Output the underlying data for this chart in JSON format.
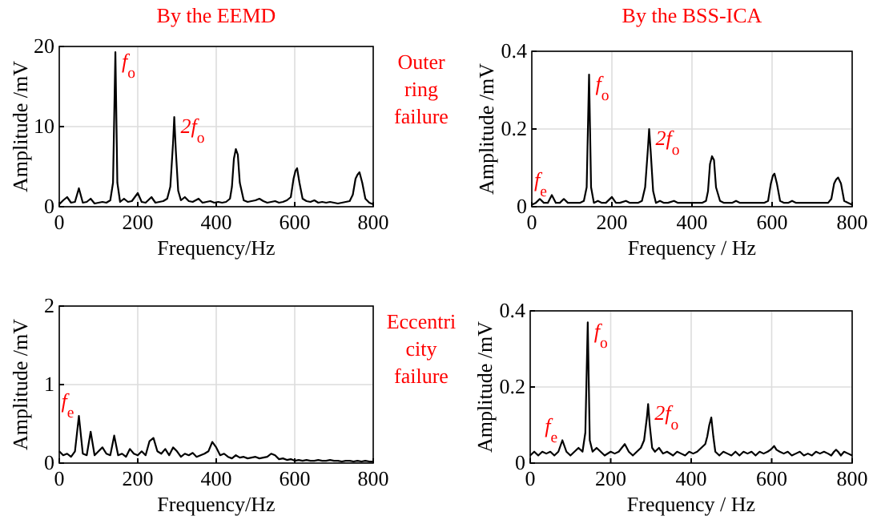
{
  "chart_data": [
    {
      "type": "line",
      "title": "By the EEMD",
      "xlabel": "Frequency/Hz",
      "ylabel": "Amplitude /mV",
      "xlim": [
        0,
        800
      ],
      "xticks": [
        0,
        200,
        400,
        600,
        800
      ],
      "ylim": [
        0,
        20
      ],
      "yticks": [
        0,
        10,
        20
      ],
      "grid": true,
      "x": [
        0,
        10,
        20,
        30,
        40,
        50,
        60,
        70,
        80,
        90,
        100,
        110,
        120,
        130,
        137,
        143,
        148,
        155,
        165,
        175,
        185,
        200,
        210,
        220,
        235,
        245,
        255,
        265,
        275,
        283,
        290,
        293,
        297,
        303,
        310,
        320,
        330,
        340,
        355,
        365,
        375,
        385,
        395,
        405,
        415,
        425,
        435,
        440,
        445,
        450,
        455,
        460,
        470,
        480,
        490,
        500,
        510,
        520,
        530,
        540,
        550,
        560,
        570,
        580,
        590,
        597,
        602,
        606,
        612,
        620,
        630,
        640,
        650,
        660,
        670,
        680,
        690,
        700,
        710,
        720,
        730,
        740,
        748,
        755,
        760,
        765,
        772,
        780,
        790,
        800
      ],
      "series": [
        {
          "color": "#000000",
          "values": [
            0.3,
            0.8,
            1.2,
            0.5,
            0.6,
            2.3,
            0.5,
            0.6,
            1.0,
            0.4,
            0.5,
            0.6,
            0.5,
            0.8,
            3,
            19.3,
            3,
            0.6,
            1.0,
            0.6,
            0.7,
            1.7,
            0.6,
            0.5,
            1.2,
            0.5,
            0.6,
            0.7,
            1.0,
            2.5,
            8,
            11.2,
            7,
            2,
            0.8,
            1.2,
            0.7,
            0.6,
            1.0,
            0.5,
            0.6,
            0.7,
            0.5,
            0.6,
            0.5,
            0.6,
            1.0,
            2.5,
            6,
            7.2,
            6.5,
            3,
            0.8,
            0.6,
            0.7,
            0.8,
            1.0,
            0.7,
            0.5,
            0.6,
            0.7,
            0.5,
            0.6,
            0.8,
            1.2,
            3.5,
            4.5,
            4.8,
            3.0,
            1.0,
            0.7,
            0.6,
            0.8,
            0.5,
            0.6,
            0.5,
            0.6,
            0.5,
            0.4,
            0.5,
            0.6,
            0.7,
            1.5,
            3.5,
            4.0,
            4.3,
            3.0,
            1.0,
            0.5,
            0.3
          ]
        }
      ],
      "annotations": [
        {
          "text": "f$_{o}$",
          "x": 143,
          "y": 19.3
        },
        {
          "text": "2f$_{o}$",
          "x": 293,
          "y": 11.2
        },
        "Outer\nring\nfailure"
      ]
    },
    {
      "type": "line",
      "title": "By the BSS-ICA",
      "xlabel": "Frequency / Hz",
      "ylabel": "Amplitude /mV",
      "xlim": [
        0,
        800
      ],
      "xticks": [
        0,
        200,
        400,
        600,
        800
      ],
      "ylim": [
        0,
        0.4
      ],
      "yticks": [
        0,
        0.2,
        0.4
      ],
      "grid": true,
      "x": [
        0,
        10,
        20,
        30,
        40,
        50,
        60,
        70,
        80,
        90,
        100,
        110,
        120,
        130,
        137,
        143,
        148,
        155,
        165,
        175,
        185,
        200,
        210,
        220,
        235,
        245,
        255,
        265,
        275,
        283,
        290,
        293,
        297,
        303,
        310,
        320,
        330,
        340,
        355,
        365,
        375,
        385,
        395,
        405,
        415,
        425,
        435,
        440,
        445,
        450,
        455,
        460,
        470,
        480,
        490,
        500,
        510,
        520,
        530,
        540,
        550,
        560,
        570,
        580,
        590,
        597,
        602,
        606,
        612,
        620,
        630,
        640,
        650,
        660,
        670,
        680,
        690,
        700,
        710,
        720,
        730,
        740,
        748,
        755,
        760,
        765,
        772,
        780,
        790,
        800
      ],
      "series": [
        {
          "color": "#000000",
          "values": [
            0.005,
            0.01,
            0.02,
            0.01,
            0.01,
            0.03,
            0.01,
            0.01,
            0.02,
            0.01,
            0.01,
            0.01,
            0.01,
            0.015,
            0.05,
            0.34,
            0.05,
            0.01,
            0.015,
            0.01,
            0.01,
            0.025,
            0.01,
            0.01,
            0.015,
            0.01,
            0.01,
            0.01,
            0.015,
            0.05,
            0.15,
            0.2,
            0.14,
            0.04,
            0.01,
            0.015,
            0.01,
            0.01,
            0.015,
            0.01,
            0.01,
            0.01,
            0.01,
            0.01,
            0.01,
            0.01,
            0.015,
            0.04,
            0.11,
            0.13,
            0.12,
            0.05,
            0.015,
            0.01,
            0.01,
            0.01,
            0.015,
            0.01,
            0.01,
            0.01,
            0.01,
            0.01,
            0.01,
            0.01,
            0.015,
            0.06,
            0.08,
            0.085,
            0.06,
            0.015,
            0.01,
            0.01,
            0.015,
            0.01,
            0.01,
            0.01,
            0.01,
            0.01,
            0.01,
            0.01,
            0.01,
            0.01,
            0.02,
            0.06,
            0.07,
            0.075,
            0.06,
            0.015,
            0.01,
            0.005
          ]
        }
      ],
      "annotations": [
        {
          "text": "f$_{o}$",
          "x": 143,
          "y": 0.34
        },
        {
          "text": "2f$_{o}$",
          "x": 293,
          "y": 0.2
        },
        {
          "text": "f$_{e}$",
          "x": 50,
          "y": 0.03
        }
      ]
    },
    {
      "type": "line",
      "xlabel": "Frequency/Hz",
      "ylabel": "Amplitude /mV",
      "xlim": [
        0,
        800
      ],
      "xticks": [
        0,
        200,
        400,
        600,
        800
      ],
      "ylim": [
        0,
        2
      ],
      "yticks": [
        0,
        1,
        2
      ],
      "grid": true,
      "x": [
        0,
        10,
        20,
        30,
        40,
        50,
        60,
        70,
        80,
        90,
        100,
        110,
        120,
        130,
        140,
        150,
        160,
        170,
        180,
        190,
        200,
        210,
        220,
        230,
        240,
        250,
        260,
        270,
        280,
        290,
        300,
        310,
        320,
        330,
        340,
        350,
        360,
        370,
        380,
        390,
        400,
        410,
        420,
        430,
        440,
        450,
        460,
        470,
        480,
        490,
        500,
        510,
        520,
        530,
        540,
        550,
        560,
        570,
        580,
        590,
        600,
        610,
        620,
        630,
        640,
        650,
        660,
        670,
        680,
        690,
        700,
        710,
        720,
        730,
        740,
        750,
        760,
        770,
        780,
        790,
        800
      ],
      "series": [
        {
          "color": "#000000",
          "values": [
            0.15,
            0.1,
            0.12,
            0.08,
            0.15,
            0.6,
            0.12,
            0.1,
            0.4,
            0.1,
            0.15,
            0.2,
            0.12,
            0.1,
            0.35,
            0.1,
            0.12,
            0.08,
            0.18,
            0.12,
            0.1,
            0.15,
            0.1,
            0.28,
            0.32,
            0.15,
            0.12,
            0.18,
            0.1,
            0.2,
            0.15,
            0.08,
            0.12,
            0.1,
            0.13,
            0.08,
            0.1,
            0.12,
            0.15,
            0.27,
            0.2,
            0.1,
            0.12,
            0.08,
            0.06,
            0.1,
            0.07,
            0.08,
            0.06,
            0.07,
            0.08,
            0.06,
            0.07,
            0.08,
            0.12,
            0.1,
            0.05,
            0.06,
            0.04,
            0.05,
            0.03,
            0.04,
            0.03,
            0.04,
            0.03,
            0.03,
            0.04,
            0.03,
            0.03,
            0.04,
            0.03,
            0.03,
            0.02,
            0.03,
            0.03,
            0.02,
            0.03,
            0.02,
            0.03,
            0.02,
            0.02
          ]
        }
      ],
      "annotations": [
        {
          "text": "f$_{e}$",
          "x": 50,
          "y": 0.6
        },
        "Eccentri\ncity\nfailure"
      ]
    },
    {
      "type": "line",
      "xlabel": "Frequency / Hz",
      "ylabel": "Amplitude /mV",
      "xlim": [
        0,
        800
      ],
      "xticks": [
        0,
        200,
        400,
        600,
        800
      ],
      "ylim": [
        0,
        0.4
      ],
      "yticks": [
        0,
        0.2,
        0.4
      ],
      "grid": true,
      "x": [
        0,
        10,
        20,
        30,
        40,
        50,
        60,
        70,
        80,
        90,
        100,
        110,
        120,
        130,
        137,
        143,
        148,
        155,
        165,
        175,
        185,
        200,
        210,
        220,
        235,
        245,
        255,
        265,
        275,
        283,
        290,
        293,
        297,
        303,
        310,
        320,
        330,
        340,
        355,
        365,
        375,
        385,
        395,
        405,
        415,
        425,
        435,
        440,
        445,
        450,
        455,
        460,
        470,
        480,
        490,
        500,
        510,
        520,
        530,
        540,
        550,
        560,
        570,
        580,
        590,
        597,
        602,
        606,
        612,
        620,
        630,
        640,
        650,
        660,
        670,
        680,
        690,
        700,
        710,
        720,
        730,
        740,
        748,
        755,
        760,
        765,
        772,
        780,
        790,
        800
      ],
      "series": [
        {
          "color": "#000000",
          "values": [
            0.02,
            0.03,
            0.02,
            0.03,
            0.025,
            0.03,
            0.02,
            0.03,
            0.06,
            0.03,
            0.02,
            0.03,
            0.04,
            0.03,
            0.08,
            0.37,
            0.06,
            0.03,
            0.04,
            0.03,
            0.02,
            0.03,
            0.025,
            0.03,
            0.05,
            0.03,
            0.02,
            0.03,
            0.04,
            0.06,
            0.12,
            0.155,
            0.1,
            0.04,
            0.03,
            0.04,
            0.025,
            0.03,
            0.02,
            0.03,
            0.025,
            0.02,
            0.03,
            0.025,
            0.03,
            0.04,
            0.05,
            0.07,
            0.1,
            0.12,
            0.07,
            0.03,
            0.02,
            0.03,
            0.025,
            0.02,
            0.03,
            0.02,
            0.03,
            0.025,
            0.03,
            0.02,
            0.03,
            0.025,
            0.03,
            0.035,
            0.04,
            0.045,
            0.035,
            0.03,
            0.025,
            0.03,
            0.02,
            0.025,
            0.03,
            0.02,
            0.025,
            0.02,
            0.03,
            0.025,
            0.03,
            0.025,
            0.02,
            0.03,
            0.035,
            0.03,
            0.02,
            0.03,
            0.025,
            0.02
          ]
        }
      ],
      "annotations": [
        {
          "text": "f$_{o}$",
          "x": 143,
          "y": 0.37
        },
        {
          "text": "2f$_{o}$",
          "x": 293,
          "y": 0.155
        },
        {
          "text": "f$_{e}$",
          "x": 80,
          "y": 0.06
        }
      ]
    }
  ]
}
